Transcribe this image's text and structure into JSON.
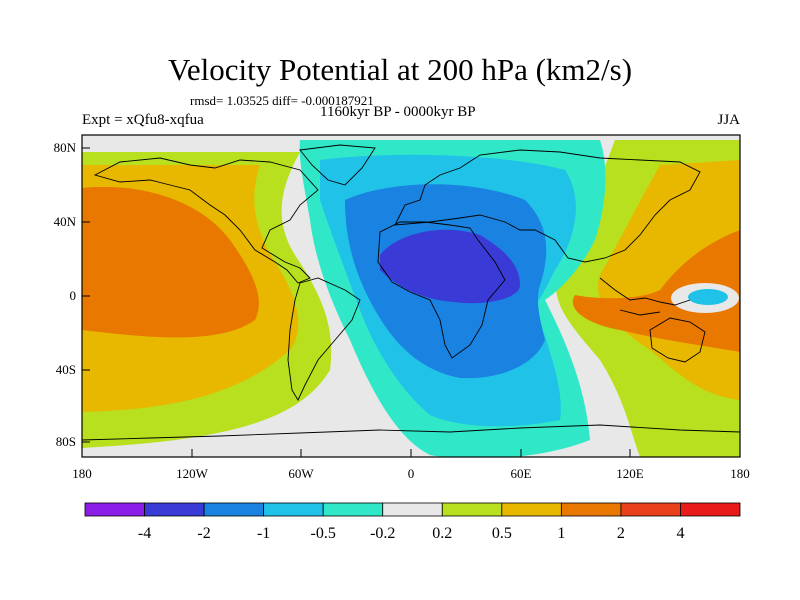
{
  "title": "Velocity Potential at 200 hPa (km2/s)",
  "stats": "rmsd= 1.03525 diff= -0.000187921",
  "expt": "Expt = xQfu8-xqfua",
  "period": "1160kyr BP - 0000kyr BP",
  "season": "JJA",
  "lat_labels": [
    "80N",
    "40N",
    "0",
    "40S",
    "80S"
  ],
  "lon_labels": [
    "180",
    "120W",
    "60W",
    "0",
    "60E",
    "120E",
    "180"
  ],
  "colorbar": {
    "colors": [
      "#8a1ee6",
      "#3a3ad6",
      "#1a82e0",
      "#20c2e8",
      "#30e8c8",
      "#e8e8e8",
      "#b8e01e",
      "#e8b800",
      "#e87800",
      "#e84018",
      "#e81a1a"
    ],
    "labels": [
      "-4",
      "-2",
      "-1",
      "-0.5",
      "-0.2",
      "0.2",
      "0.5",
      "1",
      "2",
      "4"
    ]
  },
  "field_colors": {
    "neg3": "#3a3ad6",
    "neg2": "#1a82e0",
    "neg1": "#20c2e8",
    "neg05": "#30e8c8",
    "zero": "#e8e8e8",
    "pos1": "#b8e01e",
    "pos2": "#e8b800",
    "pos3": "#e87800"
  }
}
